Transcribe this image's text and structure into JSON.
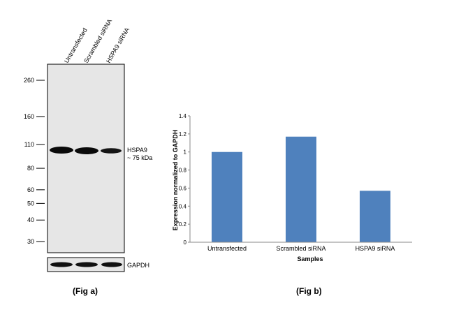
{
  "fig_a": {
    "caption": "(Fig a)",
    "lanes": [
      "Untransfected",
      "Scrambled siRNA",
      "HSPA9 siRNA"
    ],
    "markers": [
      {
        "label": "260",
        "kda": 260
      },
      {
        "label": "160",
        "kda": 160
      },
      {
        "label": "110",
        "kda": 110
      },
      {
        "label": "80",
        "kda": 80
      },
      {
        "label": "60",
        "kda": 60
      },
      {
        "label": "50",
        "kda": 50
      },
      {
        "label": "40",
        "kda": 40
      },
      {
        "label": "30",
        "kda": 30
      }
    ],
    "band_label_line1": "HSPA9",
    "band_label_line2": "~ 75 kDa",
    "loading_control_label": "GAPDH",
    "band_relative_intensity": [
      1.0,
      1.0,
      0.7
    ]
  },
  "chart_data": {
    "type": "bar",
    "title": "",
    "caption": "(Fig b)",
    "xlabel": "Samples",
    "ylabel": "Expression normalized to GAPDH",
    "categories": [
      "Untransfected",
      "Scrambled siRNA",
      "HSPA9 siRNA"
    ],
    "values": [
      1.0,
      1.17,
      0.57
    ],
    "ylim": [
      0,
      1.4
    ],
    "yticks": [
      {
        "value": 0,
        "label": "0"
      },
      {
        "value": 0.2,
        "label": "0.2"
      },
      {
        "value": 0.4,
        "label": "0.4"
      },
      {
        "value": 0.6,
        "label": "0.6"
      },
      {
        "value": 0.8,
        "label": "0.8"
      },
      {
        "value": 1.0,
        "label": "1"
      },
      {
        "value": 1.2,
        "label": "1.2"
      },
      {
        "value": 1.4,
        "label": "1.4"
      }
    ],
    "grid": false,
    "bar_color": "#4f81bd"
  }
}
